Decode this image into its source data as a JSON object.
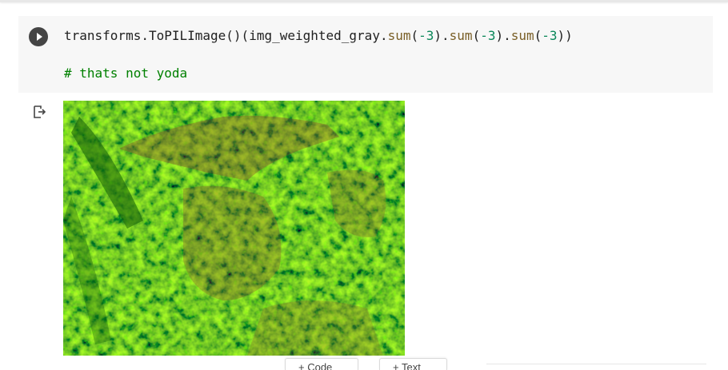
{
  "cell": {
    "code_tokens": [
      {
        "t": "transforms.ToPILImage()(img_weighted_gray.",
        "c": "plain"
      },
      {
        "t": "sum",
        "c": "fn"
      },
      {
        "t": "(",
        "c": "plain"
      },
      {
        "t": "-3",
        "c": "num"
      },
      {
        "t": ").",
        "c": "plain"
      },
      {
        "t": "sum",
        "c": "fn"
      },
      {
        "t": "(",
        "c": "plain"
      },
      {
        "t": "-3",
        "c": "num"
      },
      {
        "t": ").",
        "c": "plain"
      },
      {
        "t": "sum",
        "c": "fn"
      },
      {
        "t": "(",
        "c": "plain"
      },
      {
        "t": "-3",
        "c": "num"
      },
      {
        "t": "))",
        "c": "plain"
      }
    ],
    "comment": "# thats not yoda"
  },
  "toolbar": {
    "add_code_label": "+ Code",
    "add_text_label": "+ Text"
  },
  "colors": {
    "cell_bg": "#f7f7f7",
    "run_button": "#454545",
    "comment": "#008000",
    "function": "#795e26",
    "number": "#098658",
    "image_green": "#2aa80f",
    "image_red": "#a23a32"
  },
  "icons": {
    "run": "play-circle-icon",
    "output": "output-redirect-icon"
  }
}
